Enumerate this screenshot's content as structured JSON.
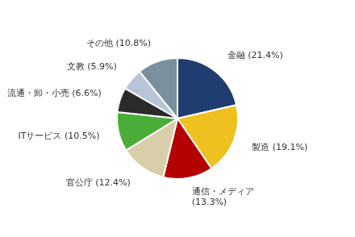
{
  "chart_data": {
    "type": "pie",
    "categories": [
      "金融 (21.4%)",
      "製造 (19.1%)",
      "通信・メディア\n(13.3%)",
      "官公庁 (12.4%)",
      "ITサービス (10.5%)",
      "流通・卸・小売 (6.6%)",
      "文教 (5.9%)",
      "その他 (10.8%)"
    ],
    "values": [
      21.4,
      19.1,
      13.3,
      12.4,
      10.5,
      6.6,
      5.9,
      10.8
    ],
    "colors": [
      "#1f3d6e",
      "#f0c020",
      "#b50000",
      "#d8ceaa",
      "#4aad3a",
      "#2a2a2a",
      "#b8c4d8",
      "#7a909e"
    ]
  }
}
